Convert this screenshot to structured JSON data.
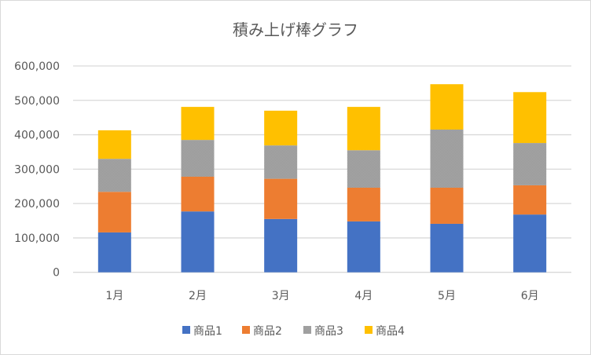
{
  "chart_data": {
    "type": "bar",
    "stacked": true,
    "title": "積み上げ棒グラフ",
    "xlabel": "",
    "ylabel": "",
    "categories": [
      "1月",
      "2月",
      "3月",
      "4月",
      "5月",
      "6月"
    ],
    "ylim": [
      0,
      600000
    ],
    "yticks": [
      0,
      100000,
      200000,
      300000,
      400000,
      500000,
      600000
    ],
    "ytick_labels": [
      "0",
      "100,000",
      "200,000",
      "300,000",
      "400,000",
      "500,000",
      "600,000"
    ],
    "grid": true,
    "legend_position": "bottom",
    "series": [
      {
        "name": "商品1",
        "color": "#4472c4",
        "values": [
          116000,
          177000,
          155000,
          148000,
          141000,
          168000
        ]
      },
      {
        "name": "商品2",
        "color": "#ed7d31",
        "values": [
          118000,
          101000,
          117000,
          98000,
          105000,
          85000
        ]
      },
      {
        "name": "商品3",
        "color": "#a5a5a5",
        "values": [
          96000,
          107000,
          97000,
          109000,
          169000,
          123000
        ]
      },
      {
        "name": "商品4",
        "color": "#ffc000",
        "values": [
          83000,
          96000,
          101000,
          126000,
          132000,
          148000
        ]
      }
    ]
  }
}
